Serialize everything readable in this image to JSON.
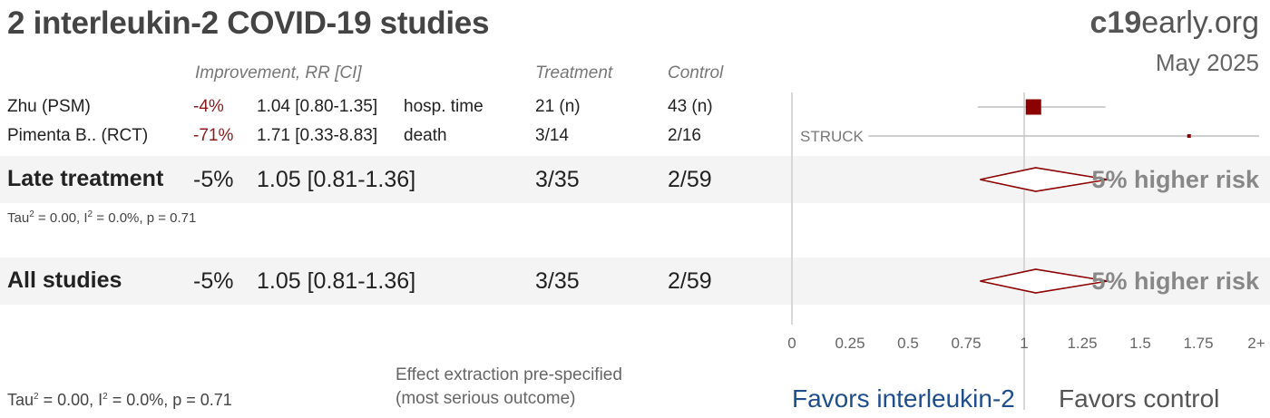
{
  "title": "2 interleukin-2 COVID-19 studies",
  "brand": {
    "main_bold": "c19",
    "main_rest": "early.org",
    "date": "May 2025"
  },
  "headers": {
    "improvement": "Improvement, RR [CI]",
    "treatment": "Treatment",
    "control": "Control"
  },
  "studies": [
    {
      "name": "Zhu (PSM)",
      "improvement": "-4%",
      "rr_text": "1.04 [0.80-1.35]",
      "outcome": "hosp. time",
      "treatment": "21 (n)",
      "control": "43 (n)"
    },
    {
      "name": "Pimenta B.. (RCT)",
      "improvement": "-71%",
      "rr_text": "1.71 [0.33-8.83]",
      "outcome": "death",
      "treatment": "3/14",
      "control": "2/16",
      "marker_label": "STRUCK"
    }
  ],
  "groups": [
    {
      "name": "Late treatment",
      "improvement": "-5%",
      "rr_text": "1.05 [0.81-1.36]",
      "treatment": "3/35",
      "control": "2/59",
      "risk_label": "5% higher risk",
      "stats": {
        "tau_label": "Tau",
        "tau_exp": "2",
        "tau_rest": " = 0.00, I",
        "i_exp": "2",
        "i_rest": " = 0.0%, p = 0.71"
      }
    },
    {
      "name": "All studies",
      "improvement": "-5%",
      "rr_text": "1.05 [0.81-1.36]",
      "treatment": "3/35",
      "control": "2/59",
      "risk_label": "5% higher risk"
    }
  ],
  "footer": {
    "stats": {
      "tau_label": "Tau",
      "tau_exp": "2",
      "tau_rest": " = 0.00, I",
      "i_exp": "2",
      "i_rest": " = 0.0%, p = 0.71"
    },
    "note_line1": "Effect extraction pre-specified",
    "note_line2": "(most serious outcome)",
    "favors_left": "Favors interleukin-2",
    "favors_right": "Favors control"
  },
  "colors": {
    "marker": "#8b0000",
    "favors_left": "#1f4e8c",
    "band": "#f4f4f4"
  },
  "chart_data": {
    "type": "forest",
    "x_ticks": [
      "0",
      "0.25",
      "0.5",
      "0.75",
      "1",
      "1.25",
      "1.5",
      "1.75",
      "2+"
    ],
    "x_tick_values": [
      0,
      0.25,
      0.5,
      0.75,
      1,
      1.25,
      1.5,
      1.75,
      2
    ],
    "xlim": [
      0,
      2
    ],
    "reference_line": 1,
    "studies": [
      {
        "name": "Zhu (PSM)",
        "rr": 1.04,
        "ci": [
          0.8,
          1.35
        ],
        "weight": "large"
      },
      {
        "name": "Pimenta B.. (RCT)",
        "rr": 1.71,
        "ci": [
          0.33,
          8.83
        ],
        "weight": "small"
      }
    ],
    "pooled": [
      {
        "name": "Late treatment",
        "rr": 1.05,
        "ci": [
          0.81,
          1.36
        ]
      },
      {
        "name": "All studies",
        "rr": 1.05,
        "ci": [
          0.81,
          1.36
        ]
      }
    ]
  }
}
